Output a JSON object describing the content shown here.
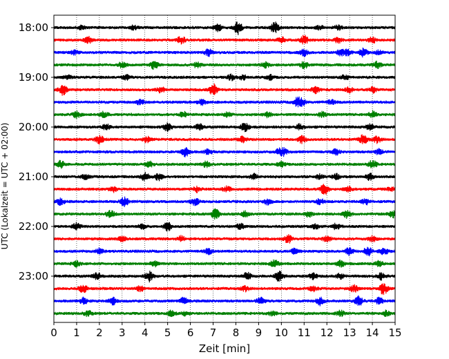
{
  "chart_data": {
    "type": "line",
    "title": "",
    "xlabel": "Zeit  [min]",
    "ylabel": "UTC (Lokalzeit = UTC + 02:00)",
    "xlim": [
      0,
      15
    ],
    "x_ticks": [
      "0",
      "1",
      "2",
      "3",
      "4",
      "5",
      "6",
      "7",
      "8",
      "9",
      "10",
      "11",
      "12",
      "13",
      "14",
      "15"
    ],
    "y_ticks": [
      "18:00",
      "19:00",
      "20:00",
      "21:00",
      "22:00",
      "23:00"
    ],
    "grid": "vertical-dotted",
    "row_interval_minutes": 15,
    "trace_colors": [
      "#000000",
      "#ff0000",
      "#0000ff",
      "#008000"
    ],
    "traces": [
      {
        "start": "18:00",
        "color": "#000000",
        "events": [
          [
            1.2,
            0.3
          ],
          [
            3.5,
            0.3
          ],
          [
            7.2,
            0.5
          ],
          [
            8.1,
            1.0
          ],
          [
            9.7,
            0.8
          ],
          [
            11.7,
            0.3
          ],
          [
            12.5,
            0.35
          ]
        ]
      },
      {
        "start": "18:15",
        "color": "#ff0000",
        "events": [
          [
            1.5,
            0.5
          ],
          [
            5.6,
            0.6
          ],
          [
            10.0,
            0.4
          ],
          [
            11.0,
            0.7
          ],
          [
            12.5,
            0.4
          ],
          [
            14.0,
            0.4
          ]
        ]
      },
      {
        "start": "18:30",
        "color": "#0000ff",
        "events": [
          [
            0.9,
            0.3
          ],
          [
            6.8,
            0.5
          ],
          [
            11.0,
            0.5
          ],
          [
            12.6,
            0.4
          ],
          [
            12.9,
            0.4
          ],
          [
            13.6,
            0.6
          ],
          [
            14.3,
            0.3
          ]
        ]
      },
      {
        "start": "18:45",
        "color": "#008000",
        "events": [
          [
            3.0,
            0.4
          ],
          [
            4.4,
            0.6
          ],
          [
            6.3,
            0.4
          ],
          [
            9.3,
            0.4
          ],
          [
            11.0,
            0.5
          ],
          [
            14.2,
            0.5
          ]
        ]
      },
      {
        "start": "19:00",
        "color": "#000000",
        "events": [
          [
            0.6,
            0.3
          ],
          [
            3.2,
            0.4
          ],
          [
            7.8,
            0.4
          ],
          [
            8.3,
            0.35
          ],
          [
            9.5,
            0.35
          ],
          [
            12.8,
            0.35
          ]
        ]
      },
      {
        "start": "19:15",
        "color": "#ff0000",
        "events": [
          [
            0.4,
            0.8
          ],
          [
            7.0,
            0.9
          ],
          [
            4.7,
            0.4
          ],
          [
            11.5,
            0.5
          ],
          [
            13.0,
            0.4
          ],
          [
            14.0,
            0.4
          ]
        ]
      },
      {
        "start": "19:30",
        "color": "#0000ff",
        "events": [
          [
            3.8,
            0.4
          ],
          [
            6.5,
            0.4
          ],
          [
            10.7,
            0.6
          ],
          [
            10.9,
            0.5
          ],
          [
            12.2,
            0.3
          ]
        ]
      },
      {
        "start": "19:45",
        "color": "#008000",
        "events": [
          [
            1.0,
            0.5
          ],
          [
            2.2,
            0.4
          ],
          [
            5.7,
            0.4
          ],
          [
            7.6,
            0.4
          ],
          [
            9.4,
            0.4
          ],
          [
            11.8,
            0.4
          ],
          [
            14.0,
            0.5
          ]
        ]
      },
      {
        "start": "20:00",
        "color": "#000000",
        "events": [
          [
            2.3,
            0.4
          ],
          [
            5.0,
            0.6
          ],
          [
            6.4,
            0.4
          ],
          [
            8.4,
            0.6
          ],
          [
            10.8,
            0.4
          ],
          [
            13.9,
            0.4
          ]
        ]
      },
      {
        "start": "20:15",
        "color": "#ff0000",
        "events": [
          [
            2.0,
            0.6
          ],
          [
            4.1,
            0.4
          ],
          [
            8.3,
            0.4
          ],
          [
            10.9,
            0.5
          ],
          [
            13.6,
            0.7
          ],
          [
            14.2,
            0.5
          ]
        ]
      },
      {
        "start": "20:30",
        "color": "#0000ff",
        "events": [
          [
            5.8,
            0.7
          ],
          [
            6.8,
            0.4
          ],
          [
            9.9,
            0.4
          ],
          [
            10.1,
            0.5
          ],
          [
            12.4,
            0.4
          ],
          [
            14.3,
            0.4
          ]
        ]
      },
      {
        "start": "20:45",
        "color": "#008000",
        "events": [
          [
            0.3,
            0.5
          ],
          [
            4.2,
            0.4
          ],
          [
            6.7,
            0.4
          ],
          [
            10.0,
            0.4
          ],
          [
            14.0,
            0.6
          ]
        ]
      },
      {
        "start": "21:00",
        "color": "#000000",
        "events": [
          [
            1.4,
            0.4
          ],
          [
            4.0,
            0.6
          ],
          [
            4.6,
            0.5
          ],
          [
            8.8,
            0.4
          ],
          [
            11.7,
            0.4
          ],
          [
            12.4,
            0.4
          ],
          [
            13.9,
            0.5
          ]
        ]
      },
      {
        "start": "21:15",
        "color": "#ff0000",
        "events": [
          [
            2.6,
            0.4
          ],
          [
            6.3,
            0.4
          ],
          [
            7.6,
            0.4
          ],
          [
            11.9,
            0.8
          ],
          [
            12.9,
            0.4
          ],
          [
            14.8,
            0.3
          ]
        ]
      },
      {
        "start": "21:30",
        "color": "#0000ff",
        "events": [
          [
            0.3,
            0.5
          ],
          [
            3.1,
            0.7
          ],
          [
            6.2,
            0.5
          ],
          [
            9.4,
            0.4
          ],
          [
            11.7,
            0.4
          ],
          [
            13.7,
            0.4
          ]
        ]
      },
      {
        "start": "21:45",
        "color": "#008000",
        "events": [
          [
            2.5,
            0.6
          ],
          [
            7.1,
            0.7
          ],
          [
            8.4,
            0.4
          ],
          [
            11.2,
            0.4
          ],
          [
            12.9,
            0.6
          ],
          [
            14.9,
            0.5
          ]
        ]
      },
      {
        "start": "22:00",
        "color": "#000000",
        "events": [
          [
            1.0,
            0.5
          ],
          [
            3.9,
            0.4
          ],
          [
            5.0,
            0.6
          ],
          [
            8.2,
            0.4
          ],
          [
            11.5,
            0.4
          ],
          [
            12.4,
            0.4
          ]
        ]
      },
      {
        "start": "22:15",
        "color": "#ff0000",
        "events": [
          [
            3.0,
            0.4
          ],
          [
            5.6,
            0.4
          ],
          [
            10.3,
            0.6
          ],
          [
            12.0,
            0.4
          ],
          [
            14.0,
            0.4
          ]
        ]
      },
      {
        "start": "22:30",
        "color": "#0000ff",
        "events": [
          [
            2.0,
            0.4
          ],
          [
            6.8,
            0.4
          ],
          [
            10.6,
            0.4
          ],
          [
            13.0,
            0.6
          ],
          [
            13.8,
            0.7
          ],
          [
            14.5,
            0.6
          ]
        ]
      },
      {
        "start": "22:45",
        "color": "#008000",
        "events": [
          [
            1.0,
            0.4
          ],
          [
            4.4,
            0.4
          ],
          [
            9.7,
            0.6
          ],
          [
            12.6,
            0.5
          ],
          [
            14.3,
            0.4
          ]
        ]
      },
      {
        "start": "23:00",
        "color": "#000000",
        "events": [
          [
            1.9,
            0.5
          ],
          [
            4.2,
            0.8
          ],
          [
            8.5,
            0.5
          ],
          [
            9.9,
            0.8
          ],
          [
            11.4,
            0.4
          ],
          [
            12.6,
            0.4
          ],
          [
            14.4,
            0.5
          ]
        ]
      },
      {
        "start": "23:15",
        "color": "#ff0000",
        "events": [
          [
            1.3,
            0.7
          ],
          [
            3.8,
            0.4
          ],
          [
            8.4,
            0.4
          ],
          [
            11.4,
            0.4
          ],
          [
            13.2,
            0.5
          ],
          [
            14.5,
            0.9
          ]
        ]
      },
      {
        "start": "23:30",
        "color": "#0000ff",
        "events": [
          [
            1.3,
            0.5
          ],
          [
            2.6,
            0.5
          ],
          [
            5.7,
            0.5
          ],
          [
            9.1,
            0.6
          ],
          [
            11.7,
            0.6
          ],
          [
            13.4,
            0.7
          ],
          [
            14.3,
            0.5
          ]
        ]
      },
      {
        "start": "23:45",
        "color": "#008000",
        "events": [
          [
            1.5,
            0.4
          ],
          [
            5.2,
            0.5
          ],
          [
            5.8,
            0.3
          ],
          [
            9.6,
            0.3
          ],
          [
            12.6,
            0.4
          ],
          [
            14.6,
            0.4
          ]
        ]
      }
    ]
  }
}
